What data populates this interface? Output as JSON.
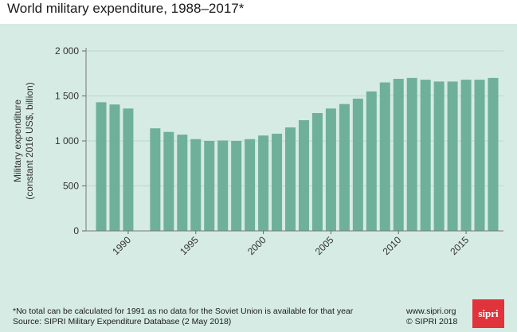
{
  "chart_data": {
    "type": "bar",
    "title": "World military expenditure, 1988–2017*",
    "ylabel_line1": "Military expenditure",
    "ylabel_line2": "(constant 2016 US$, billion)",
    "ylim": [
      0,
      2000
    ],
    "yticks": [
      0,
      500,
      1000,
      1500,
      2000
    ],
    "ytick_labels": [
      "0",
      "500",
      "1 000",
      "1 500",
      "2 000"
    ],
    "xticks": [
      1990,
      1995,
      2000,
      2005,
      2010,
      2015
    ],
    "xtick_labels": [
      "1990",
      "1995",
      "2000",
      "2005",
      "2010",
      "2015"
    ],
    "x": [
      1988,
      1989,
      1990,
      1991,
      1992,
      1993,
      1994,
      1995,
      1996,
      1997,
      1998,
      1999,
      2000,
      2001,
      2002,
      2003,
      2004,
      2005,
      2006,
      2007,
      2008,
      2009,
      2010,
      2011,
      2012,
      2013,
      2014,
      2015,
      2016,
      2017
    ],
    "values": [
      1430,
      1405,
      1360,
      null,
      1140,
      1100,
      1070,
      1020,
      1000,
      1005,
      1000,
      1020,
      1060,
      1080,
      1150,
      1230,
      1310,
      1360,
      1410,
      1470,
      1550,
      1650,
      1690,
      1700,
      1680,
      1660,
      1660,
      1680,
      1680,
      1700
    ],
    "grid": true,
    "bar_color": "#6fb09b"
  },
  "footer": {
    "note": "*No total can be calculated for 1991 as no data for the Soviet Union is available for that year",
    "source": "Source: SIPRI Military Expenditure Database (2 May 2018)",
    "website": "www.sipri.org",
    "copyright": "© SIPRI 2018",
    "logo_text": "sipri"
  }
}
